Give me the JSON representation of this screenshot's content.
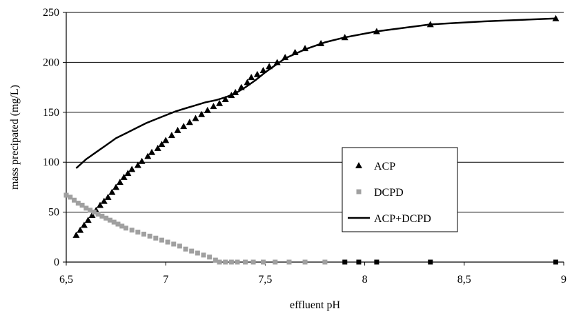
{
  "chart_data": {
    "type": "scatter",
    "title": "",
    "xlabel": "effluent pH",
    "ylabel": "mass precipated (mg/L)",
    "xlim": [
      6.5,
      9
    ],
    "ylim": [
      0,
      250
    ],
    "x_ticks": [
      6.5,
      7,
      7.5,
      8,
      8.5,
      9
    ],
    "x_tick_labels": [
      "6,5",
      "7",
      "7,5",
      "8",
      "8,5",
      "9"
    ],
    "y_ticks": [
      0,
      50,
      100,
      150,
      200,
      250
    ],
    "y_tick_labels": [
      "0",
      "50",
      "100",
      "150",
      "200",
      "250"
    ],
    "grid": "horizontal",
    "legend_position": "center-right",
    "series": [
      {
        "name": "ACP",
        "kind": "markers",
        "marker": "triangle",
        "color": "#000000",
        "x": [
          6.55,
          6.57,
          6.59,
          6.61,
          6.63,
          6.65,
          6.67,
          6.69,
          6.71,
          6.73,
          6.75,
          6.77,
          6.79,
          6.81,
          6.83,
          6.86,
          6.88,
          6.91,
          6.93,
          6.96,
          6.98,
          7.0,
          7.03,
          7.06,
          7.09,
          7.12,
          7.15,
          7.18,
          7.21,
          7.24,
          7.27,
          7.3,
          7.33,
          7.35,
          7.38,
          7.41,
          7.43,
          7.46,
          7.49,
          7.52,
          7.56,
          7.6,
          7.65,
          7.7,
          7.78,
          7.9,
          8.06,
          8.33,
          8.96
        ],
        "y": [
          27,
          32,
          37,
          42,
          47,
          52,
          57,
          61,
          65,
          70,
          75,
          80,
          85,
          89,
          93,
          97,
          101,
          106,
          110,
          114,
          118,
          122,
          127,
          132,
          136,
          140,
          144,
          148,
          152,
          156,
          159,
          163,
          167,
          170,
          175,
          180,
          185,
          188,
          192,
          196,
          200,
          205,
          210,
          214,
          219,
          225,
          231,
          238,
          244
        ]
      },
      {
        "name": "DCPD",
        "kind": "markers",
        "marker": "square",
        "color": "#a0a0a0",
        "x": [
          6.5,
          6.52,
          6.54,
          6.56,
          6.58,
          6.6,
          6.62,
          6.64,
          6.66,
          6.68,
          6.7,
          6.72,
          6.74,
          6.76,
          6.78,
          6.8,
          6.83,
          6.86,
          6.89,
          6.92,
          6.95,
          6.98,
          7.01,
          7.04,
          7.07,
          7.1,
          7.13,
          7.16,
          7.19,
          7.22,
          7.25,
          7.27,
          7.3,
          7.33,
          7.36,
          7.4,
          7.44,
          7.49,
          7.55,
          7.62,
          7.7,
          7.8,
          7.9,
          7.97,
          8.06,
          8.33,
          8.96
        ],
        "y": [
          67,
          65,
          62,
          59,
          57,
          54,
          52,
          50,
          48,
          46,
          44,
          42,
          40,
          38,
          36,
          34,
          32,
          30,
          28,
          26,
          24,
          22,
          20,
          18,
          16,
          13,
          11,
          9,
          7,
          5,
          2,
          0,
          0,
          0,
          0,
          0,
          0,
          0,
          0,
          0,
          0,
          0,
          0,
          0,
          0,
          0,
          0
        ]
      },
      {
        "name": "ACP+DCPD",
        "kind": "line",
        "color": "#000000",
        "x": [
          6.55,
          6.6,
          6.65,
          6.7,
          6.75,
          6.8,
          6.85,
          6.9,
          6.95,
          7.0,
          7.05,
          7.1,
          7.15,
          7.2,
          7.25,
          7.3,
          7.35,
          7.4,
          7.45,
          7.5,
          7.55,
          7.6,
          7.7,
          7.8,
          7.9,
          8.06,
          8.33,
          8.6,
          8.96
        ],
        "y": [
          94,
          103,
          110,
          117,
          124,
          129,
          134,
          139,
          143,
          147,
          151,
          154,
          157,
          160,
          162,
          165,
          169,
          175,
          182,
          190,
          197,
          204,
          213,
          220,
          225,
          231,
          238,
          241,
          244
        ]
      }
    ]
  }
}
